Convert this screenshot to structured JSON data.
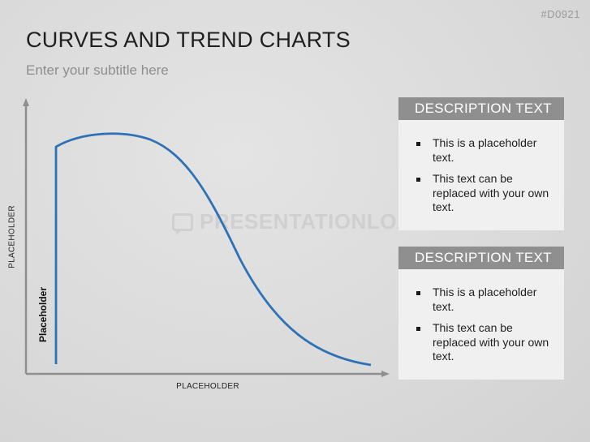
{
  "slide": {
    "id": "#D0921",
    "title": "CURVES AND TREND CHARTS",
    "subtitle": "Enter your subtitle here",
    "watermark": "PRESENTATIONLOAD"
  },
  "chart_data": {
    "type": "line",
    "xlabel": "PLACEHOLDER",
    "ylabel": "PLACEHOLDER",
    "series": [
      {
        "name": "Placeholder",
        "color": "#2e72b5"
      }
    ],
    "axis_color": "#8f8f8f",
    "grid": false
  },
  "descriptions": [
    {
      "header": "DESCRIPTION TEXT",
      "bullets": [
        "This is a placeholder text.",
        "This text can be replaced with your own text."
      ]
    },
    {
      "header": "DESCRIPTION TEXT",
      "bullets": [
        "This is a placeholder text.",
        "This text can be replaced with your own text."
      ]
    }
  ]
}
